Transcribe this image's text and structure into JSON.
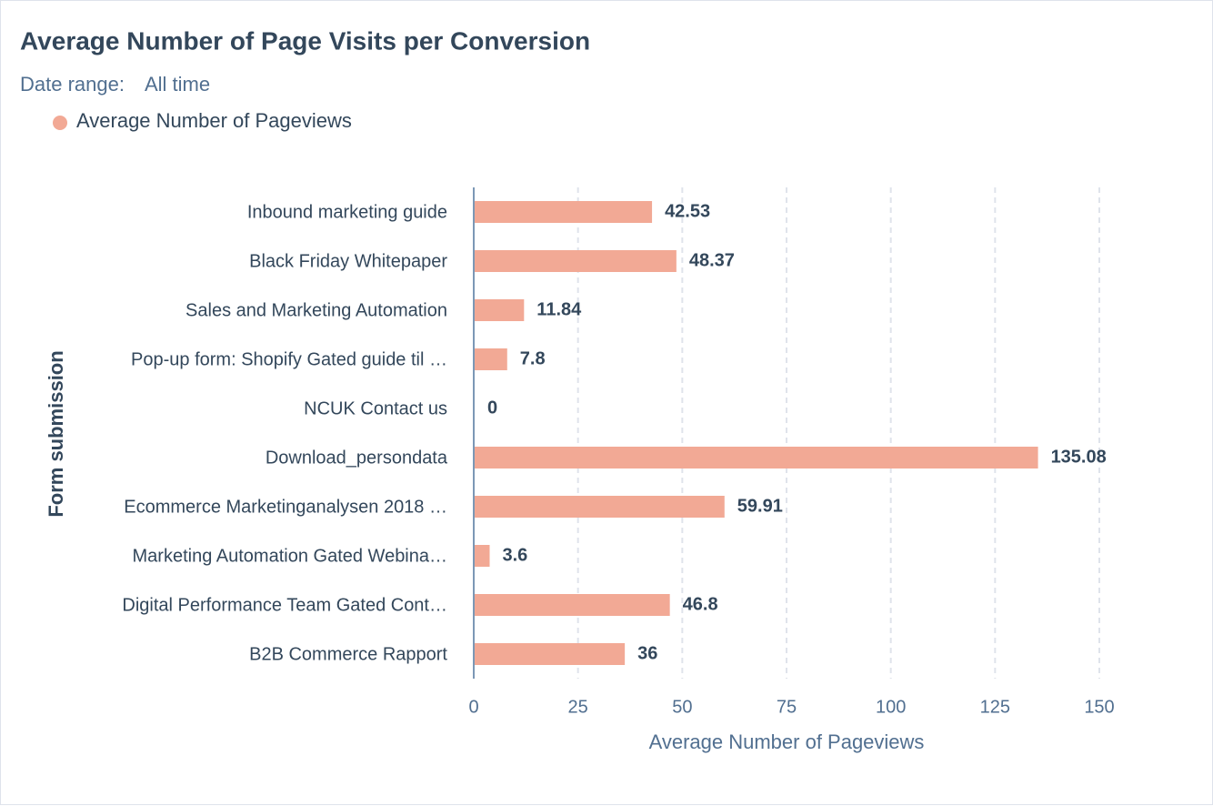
{
  "chart_data": {
    "type": "bar",
    "orientation": "horizontal",
    "title": "Average Number of Page Visits per Conversion",
    "date_range_label": "Date range:",
    "date_range_value": "All time",
    "x_label": "Average Number of Pageviews",
    "y_label": "Form submission",
    "categories": [
      "Inbound marketing guide",
      "Black Friday Whitepaper",
      "Sales and Marketing Automation",
      "Pop-up form: Shopify Gated guide til …",
      "NCUK Contact us",
      "Download_persondata",
      "Ecommerce Marketinganalysen 2018 …",
      "Marketing Automation Gated Webina…",
      "Digital Performance Team Gated Cont…",
      "B2B Commerce Rapport"
    ],
    "series": [
      {
        "name": "Average Number of Pageviews",
        "color": "#f2a995",
        "values": [
          42.53,
          48.37,
          11.84,
          7.8,
          0,
          135.08,
          59.91,
          3.6,
          46.8,
          36
        ]
      }
    ],
    "xlim": [
      0,
      150
    ],
    "xticks": [
      0,
      25,
      50,
      75,
      100,
      125,
      150
    ],
    "grid": true,
    "legend": "top-left"
  }
}
